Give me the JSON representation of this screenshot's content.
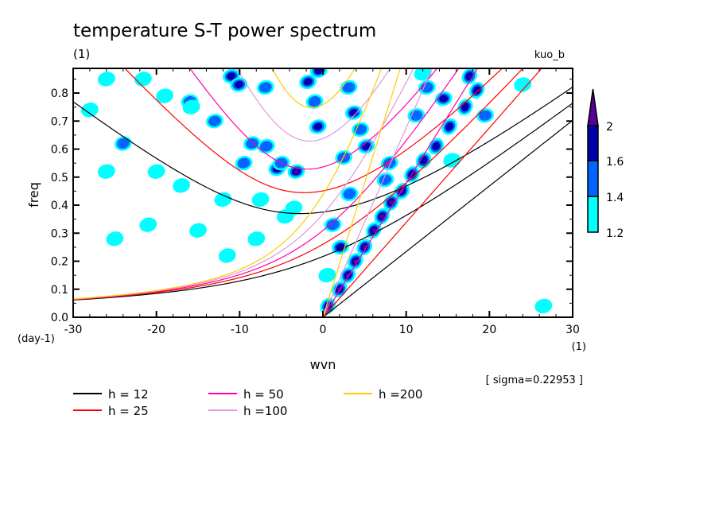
{
  "chart_data": {
    "type": "heatmap",
    "title": "temperature S-T power spectrum",
    "subtitle_left": "(1)",
    "subtitle_right": "kuo_b",
    "xlabel": "wvn",
    "xunit": "(1)",
    "ylabel": "freq",
    "yunit": "(day-1)",
    "annotation": "[ sigma=0.22953 ]",
    "xlim": [
      -30,
      30
    ],
    "ylim": [
      0,
      0.888
    ],
    "xticks": [
      -30,
      -20,
      -10,
      0,
      10,
      20,
      30
    ],
    "xtick_labels": [
      "-30",
      "-20",
      "-10",
      "0",
      "10",
      "20",
      "30"
    ],
    "yticks": [
      0,
      0.1,
      0.2,
      0.3,
      0.4,
      0.5,
      0.6,
      0.7,
      0.8
    ],
    "ytick_labels": [
      "0.0",
      "0.1",
      "0.2",
      "0.3",
      "0.4",
      "0.5",
      "0.6",
      "0.7",
      "0.8"
    ],
    "colorbar": {
      "levels": [
        1.2,
        1.4,
        1.6,
        2
      ],
      "labels": [
        "1.2",
        "1.4",
        "1.6",
        "2"
      ],
      "colors": [
        "#00ffff",
        "#0066ff",
        "#0000aa",
        "#550099"
      ],
      "extend": "max"
    },
    "dispersion_curves": [
      {
        "label": "h = 12",
        "h": 12,
        "color": "#000000"
      },
      {
        "label": "h = 25",
        "h": 25,
        "color": "#ff0000"
      },
      {
        "label": "h = 50",
        "h": 50,
        "color": "#ff00aa"
      },
      {
        "label": "h =100",
        "h": 100,
        "color": "#dd99dd"
      },
      {
        "label": "h =200",
        "h": 200,
        "color": "#ffcc00"
      }
    ],
    "high_power_regions": [
      [
        0.6,
        0.04,
        4
      ],
      [
        2.0,
        0.1,
        4
      ],
      [
        3.0,
        0.15,
        4
      ],
      [
        3.9,
        0.2,
        4
      ],
      [
        5.0,
        0.25,
        4
      ],
      [
        6.1,
        0.31,
        4
      ],
      [
        7.1,
        0.36,
        4
      ],
      [
        8.2,
        0.41,
        4
      ],
      [
        9.5,
        0.45,
        4
      ],
      [
        10.7,
        0.51,
        3
      ],
      [
        12.1,
        0.56,
        3
      ],
      [
        13.6,
        0.61,
        3
      ],
      [
        15.2,
        0.68,
        3
      ],
      [
        17.1,
        0.75,
        3
      ],
      [
        18.5,
        0.81,
        3
      ],
      [
        17.6,
        0.86,
        3
      ],
      [
        14.5,
        0.78,
        3
      ],
      [
        19.5,
        0.72,
        2
      ],
      [
        -1.8,
        0.84,
        3
      ],
      [
        -1.0,
        0.77,
        2
      ],
      [
        3.1,
        0.82,
        2
      ],
      [
        3.7,
        0.73,
        3
      ],
      [
        5.2,
        0.61,
        3
      ],
      [
        -0.6,
        0.68,
        3
      ],
      [
        3.2,
        0.44,
        2
      ],
      [
        2.1,
        0.25,
        3
      ],
      [
        1.2,
        0.33,
        2
      ],
      [
        -3.2,
        0.52,
        4
      ],
      [
        -5.5,
        0.53,
        3
      ],
      [
        -11.0,
        0.86,
        3
      ],
      [
        -10.1,
        0.83,
        3
      ],
      [
        -6.9,
        0.82,
        2
      ],
      [
        -6.8,
        0.61,
        2
      ],
      [
        -8.5,
        0.62,
        2
      ],
      [
        -5.0,
        0.55,
        2
      ],
      [
        -24.0,
        0.62,
        2
      ],
      [
        -21.6,
        0.85,
        1
      ],
      [
        -26.0,
        0.85,
        1
      ],
      [
        -19.0,
        0.79,
        1
      ],
      [
        -16.0,
        0.77,
        2
      ],
      [
        -13.0,
        0.7,
        2
      ],
      [
        -15.8,
        0.75,
        1
      ],
      [
        -20.0,
        0.52,
        1
      ],
      [
        -12.0,
        0.42,
        1
      ],
      [
        -17.0,
        0.47,
        1
      ],
      [
        -7.5,
        0.42,
        1
      ],
      [
        -9.5,
        0.55,
        2
      ],
      [
        -4.5,
        0.36,
        1
      ],
      [
        -3.5,
        0.39,
        1
      ],
      [
        -15.0,
        0.31,
        1
      ],
      [
        -11.5,
        0.22,
        1
      ],
      [
        -25.0,
        0.28,
        1
      ],
      [
        -21.0,
        0.33,
        1
      ],
      [
        -8.0,
        0.28,
        1
      ],
      [
        0.5,
        0.15,
        1
      ],
      [
        -28.0,
        0.74,
        1
      ],
      [
        -26.0,
        0.52,
        1
      ],
      [
        4.5,
        0.67,
        2
      ],
      [
        8.0,
        0.55,
        2
      ],
      [
        7.5,
        0.49,
        2
      ],
      [
        12.5,
        0.82,
        2
      ],
      [
        11.2,
        0.72,
        2
      ],
      [
        15.5,
        0.56,
        1
      ],
      [
        12.0,
        0.87,
        1
      ],
      [
        -0.5,
        0.88,
        3
      ],
      [
        2.5,
        0.57,
        2
      ],
      [
        26.5,
        0.04,
        1
      ],
      [
        24.0,
        0.83,
        1
      ]
    ]
  }
}
